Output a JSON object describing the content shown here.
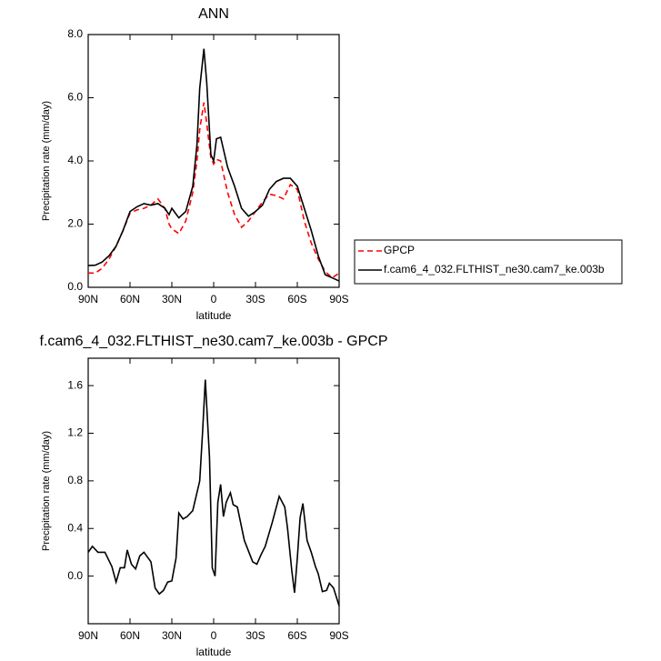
{
  "chart_data": [
    {
      "type": "line",
      "title": "ANN",
      "xlabel": "latitude",
      "ylabel": "Precipitation rate (mm/day)",
      "legend": "right",
      "x": [
        90,
        85,
        80,
        75,
        70,
        65,
        60,
        55,
        50,
        45,
        40,
        35,
        32,
        30,
        25,
        20,
        15,
        12,
        10,
        7,
        5,
        2,
        0,
        -2,
        -5,
        -10,
        -15,
        -20,
        -25,
        -30,
        -35,
        -40,
        -45,
        -50,
        -55,
        -60,
        -65,
        -70,
        -75,
        -80,
        -85,
        -90
      ],
      "series": [
        {
          "name": "GPCP",
          "color": "#ff0000",
          "dashed": true,
          "values": [
            0.45,
            0.45,
            0.6,
            0.9,
            1.3,
            1.8,
            2.35,
            2.45,
            2.5,
            2.6,
            2.8,
            2.5,
            2.0,
            1.85,
            1.7,
            2.1,
            3.0,
            4.0,
            5.0,
            5.85,
            5.2,
            4.1,
            3.9,
            4.05,
            4.0,
            3.0,
            2.3,
            1.9,
            2.1,
            2.4,
            2.7,
            2.95,
            2.9,
            2.8,
            3.25,
            3.1,
            2.1,
            1.4,
            0.9,
            0.5,
            0.3,
            0.45
          ]
        },
        {
          "name": "f.cam6_4_032.FLTHIST_ne30.cam7_ke.003b",
          "color": "#000000",
          "dashed": false,
          "values": [
            0.69,
            0.7,
            0.8,
            1.0,
            1.3,
            1.8,
            2.4,
            2.55,
            2.65,
            2.6,
            2.65,
            2.5,
            2.3,
            2.5,
            2.2,
            2.4,
            3.2,
            4.5,
            6.3,
            7.55,
            6.5,
            4.2,
            4.0,
            4.7,
            4.75,
            3.8,
            3.2,
            2.5,
            2.25,
            2.4,
            2.6,
            3.1,
            3.35,
            3.45,
            3.45,
            3.2,
            2.5,
            1.8,
            1.0,
            0.4,
            0.3,
            0.2
          ]
        }
      ],
      "xlim": [
        90,
        -90
      ],
      "ylim": [
        0,
        8
      ],
      "xticks": [
        {
          "value": 90,
          "label": "90N"
        },
        {
          "value": 60,
          "label": "60N"
        },
        {
          "value": 30,
          "label": "30N"
        },
        0,
        {
          "value": -30,
          "label": "30S"
        },
        {
          "value": -60,
          "label": "60S"
        },
        {
          "value": -90,
          "label": "90S"
        }
      ],
      "yticks": [
        {
          "value": 0,
          "label": "0.0"
        },
        {
          "value": 2,
          "label": "2.0"
        },
        {
          "value": 4,
          "label": "4.0"
        },
        {
          "value": 6,
          "label": "6.0"
        },
        {
          "value": 8,
          "label": "8.0"
        }
      ]
    },
    {
      "type": "line",
      "title": "f.cam6_4_032.FLTHIST_ne30.cam7_ke.003b - GPCP",
      "xlabel": "latitude",
      "ylabel": "Precipitation rate (mm/day)",
      "x": [
        90,
        87,
        83,
        78,
        73,
        70,
        67,
        64,
        62,
        59,
        56,
        53,
        50,
        45,
        42,
        39,
        36,
        33,
        30,
        27,
        25,
        22,
        19,
        15,
        10,
        8,
        6,
        3,
        1,
        -1,
        -3,
        -5,
        -7,
        -9,
        -12,
        -14,
        -17,
        -22,
        -28,
        -31,
        -34,
        -37,
        -42,
        -47,
        -51,
        -53,
        -56,
        -58,
        -60,
        -62,
        -64,
        -67,
        -70,
        -73,
        -75,
        -78,
        -81,
        -83,
        -86,
        -90
      ],
      "series": [
        {
          "color": "#000000",
          "dashed": false,
          "values": [
            0.2,
            0.25,
            0.2,
            0.2,
            0.08,
            -0.05,
            0.07,
            0.07,
            0.22,
            0.1,
            0.06,
            0.17,
            0.2,
            0.12,
            -0.1,
            -0.15,
            -0.12,
            -0.05,
            -0.04,
            0.15,
            0.53,
            0.48,
            0.5,
            0.55,
            0.8,
            1.2,
            1.65,
            1.0,
            0.07,
            0.0,
            0.62,
            0.77,
            0.5,
            0.62,
            0.7,
            0.6,
            0.58,
            0.3,
            0.12,
            0.1,
            0.18,
            0.25,
            0.45,
            0.67,
            0.58,
            0.4,
            0.05,
            -0.14,
            0.15,
            0.49,
            0.61,
            0.3,
            0.2,
            0.08,
            0.02,
            -0.13,
            -0.12,
            -0.06,
            -0.1,
            -0.25
          ]
        }
      ],
      "xlim": [
        90,
        -90
      ],
      "ylim": [
        -0.4,
        1.83
      ],
      "xticks": [
        {
          "value": 90,
          "label": "90N"
        },
        {
          "value": 60,
          "label": "60N"
        },
        {
          "value": 30,
          "label": "30N"
        },
        0,
        {
          "value": -30,
          "label": "30S"
        },
        {
          "value": -60,
          "label": "60S"
        },
        {
          "value": -90,
          "label": "90S"
        }
      ],
      "yticks": [
        {
          "value": 0,
          "label": "0.0"
        },
        0.4,
        0.8,
        1.2,
        1.6
      ]
    }
  ]
}
